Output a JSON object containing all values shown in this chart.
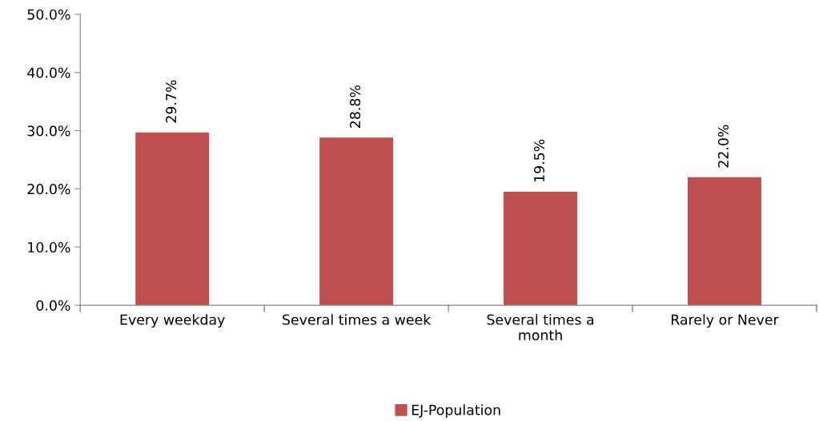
{
  "chart_data": {
    "type": "bar",
    "categories": [
      "Every weekday",
      "Several times a week",
      "Several times a month",
      "Rarely or Never"
    ],
    "series": [
      {
        "name": "EJ-Population",
        "color": "#c0504d",
        "values": [
          29.7,
          28.8,
          19.5,
          22.0
        ],
        "value_labels": [
          "29.7%",
          "28.8%",
          "19.5%",
          "22.0%"
        ]
      }
    ],
    "ylim": [
      0,
      50
    ],
    "yticks": [
      {
        "value": 0,
        "label": "0.0%"
      },
      {
        "value": 10,
        "label": "10.0%"
      },
      {
        "value": 20,
        "label": "20.0%"
      },
      {
        "value": 30,
        "label": "30.0%"
      },
      {
        "value": 40,
        "label": "40.0%"
      },
      {
        "value": 50,
        "label": "50.0%"
      }
    ],
    "grid": false,
    "legend": "bottom"
  }
}
